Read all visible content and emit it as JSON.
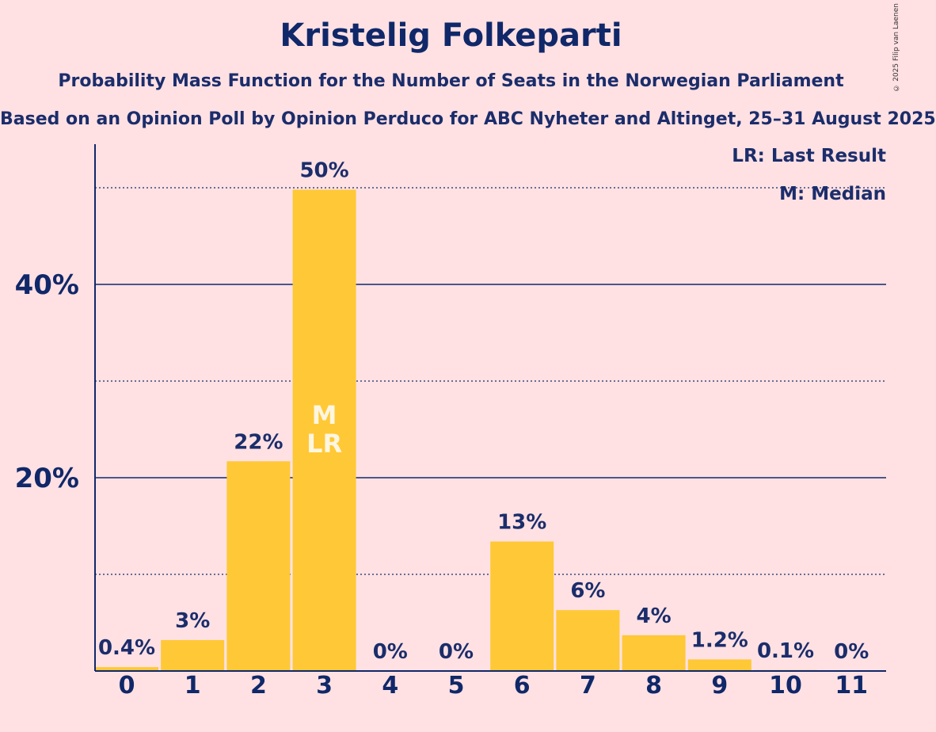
{
  "title": "Kristelig Folkeparti",
  "subtitle": "Probability Mass Function for the Number of Seats in the Norwegian Parliament",
  "subsubtitle": "Based on an Opinion Poll by Opinion Perduco for ABC Nyheter and Altinget, 25–31 August 2025",
  "copyright": "© 2025 Filip van Laenen",
  "legend": {
    "lr": "LR: Last Result",
    "m": "M: Median"
  },
  "colors": {
    "bar": "#ffc836",
    "background": "#ffe1e3",
    "text": "#1b2d6b",
    "axis": "#102869"
  },
  "chart_data": {
    "type": "bar",
    "categories": [
      "0",
      "1",
      "2",
      "3",
      "4",
      "5",
      "6",
      "7",
      "8",
      "9",
      "10",
      "11"
    ],
    "values": [
      0.4,
      3.2,
      21.7,
      49.8,
      0,
      0,
      13.4,
      6.3,
      3.7,
      1.2,
      0.1,
      0
    ],
    "labels": [
      "0.4%",
      "3%",
      "22%",
      "50%",
      "0%",
      "0%",
      "13%",
      "6%",
      "4%",
      "1.2%",
      "0.1%",
      "0%"
    ],
    "median_index": 3,
    "last_result_index": 3,
    "bar_marks": [
      "M",
      "LR"
    ],
    "ylim": [
      0,
      54
    ],
    "yticks": [
      20,
      40
    ],
    "ytick_labels": [
      "20%",
      "40%"
    ],
    "minor_gridlines": [
      10,
      30,
      50
    ],
    "grid": true,
    "legend_position": "top-right"
  }
}
